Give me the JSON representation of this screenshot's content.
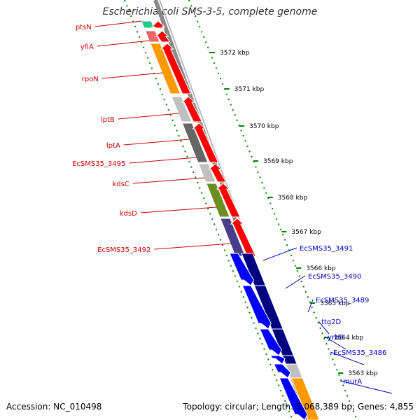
{
  "header": {
    "title": "Escherichia coli SMS-3-5, complete genome"
  },
  "footer": {
    "accession": "Accession: NC_010498",
    "summary": "Topology: circular; Length: 5,068,389 bp; Genes: 4,855"
  },
  "colors": {
    "forward_label": "#cc0000",
    "reverse_label": "#0000cc",
    "forward_arrow": "#ff0000",
    "reverse_arrow": "#0000ff",
    "ticks": "#008000"
  },
  "map": {
    "kbp_ticks": [
      "3572 kbp",
      "3571 kbp",
      "3570 kbp",
      "3569 kbp",
      "3568 kbp",
      "3567 kbp",
      "3566 kbp",
      "3565 kbp",
      "3564 kbp",
      "3563 kbp"
    ],
    "forward_genes": [
      {
        "label": "ptsN",
        "class_color": "#22cc88"
      },
      {
        "label": "yfiA",
        "class_color": "#ee6666"
      },
      {
        "label": "rpoN",
        "class_color": "#ff9900"
      },
      {
        "label": "lptB",
        "class_color": "#c0c0c0"
      },
      {
        "label": "lptA",
        "class_color": "#666666"
      },
      {
        "label": "EcSMS35_3495",
        "class_color": "#c0c0c0"
      },
      {
        "label": "kdsC",
        "class_color": "#6b8e23"
      },
      {
        "label": "kdsD",
        "class_color": "#6b8e23"
      },
      {
        "label": "EcSMS35_3492",
        "class_color": "#483d8b"
      }
    ],
    "reverse_genes": [
      {
        "label": "EcSMS35_3491",
        "class_color": "#000080"
      },
      {
        "label": "EcSMS35_3490",
        "class_color": "#000080"
      },
      {
        "label": "EcSMS35_3489",
        "class_color": "#000080"
      },
      {
        "label": "ttg2D",
        "class_color": "#000080"
      },
      {
        "label": "yrbB",
        "class_color": "#c0c0c0"
      },
      {
        "label": "EcSMS35_3486",
        "class_color": "#ff9900"
      },
      {
        "label": "murA",
        "class_color": "#6b8e23"
      }
    ]
  }
}
